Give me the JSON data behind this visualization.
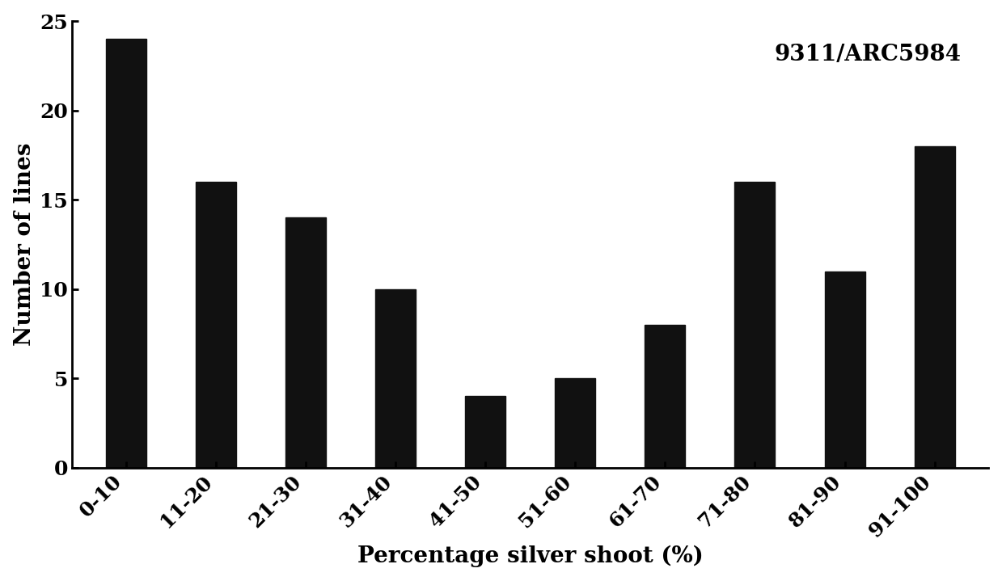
{
  "categories": [
    "0-10",
    "11-20",
    "21-30",
    "31-40",
    "41-50",
    "51-60",
    "61-70",
    "71-80",
    "81-90",
    "91-100"
  ],
  "values": [
    24,
    16,
    14,
    10,
    4,
    5,
    8,
    16,
    11,
    18
  ],
  "bar_color": "#111111",
  "xlabel": "Percentage silver shoot (%)",
  "ylabel": "Number of lines",
  "annotation": "9311/ARC5984",
  "ylim": [
    0,
    25
  ],
  "yticks": [
    0,
    5,
    10,
    15,
    20,
    25
  ],
  "ylabel_fontsize": 20,
  "xlabel_fontsize": 20,
  "annotation_fontsize": 20,
  "tick_fontsize": 18,
  "bar_width": 0.45,
  "background_color": "#ffffff"
}
